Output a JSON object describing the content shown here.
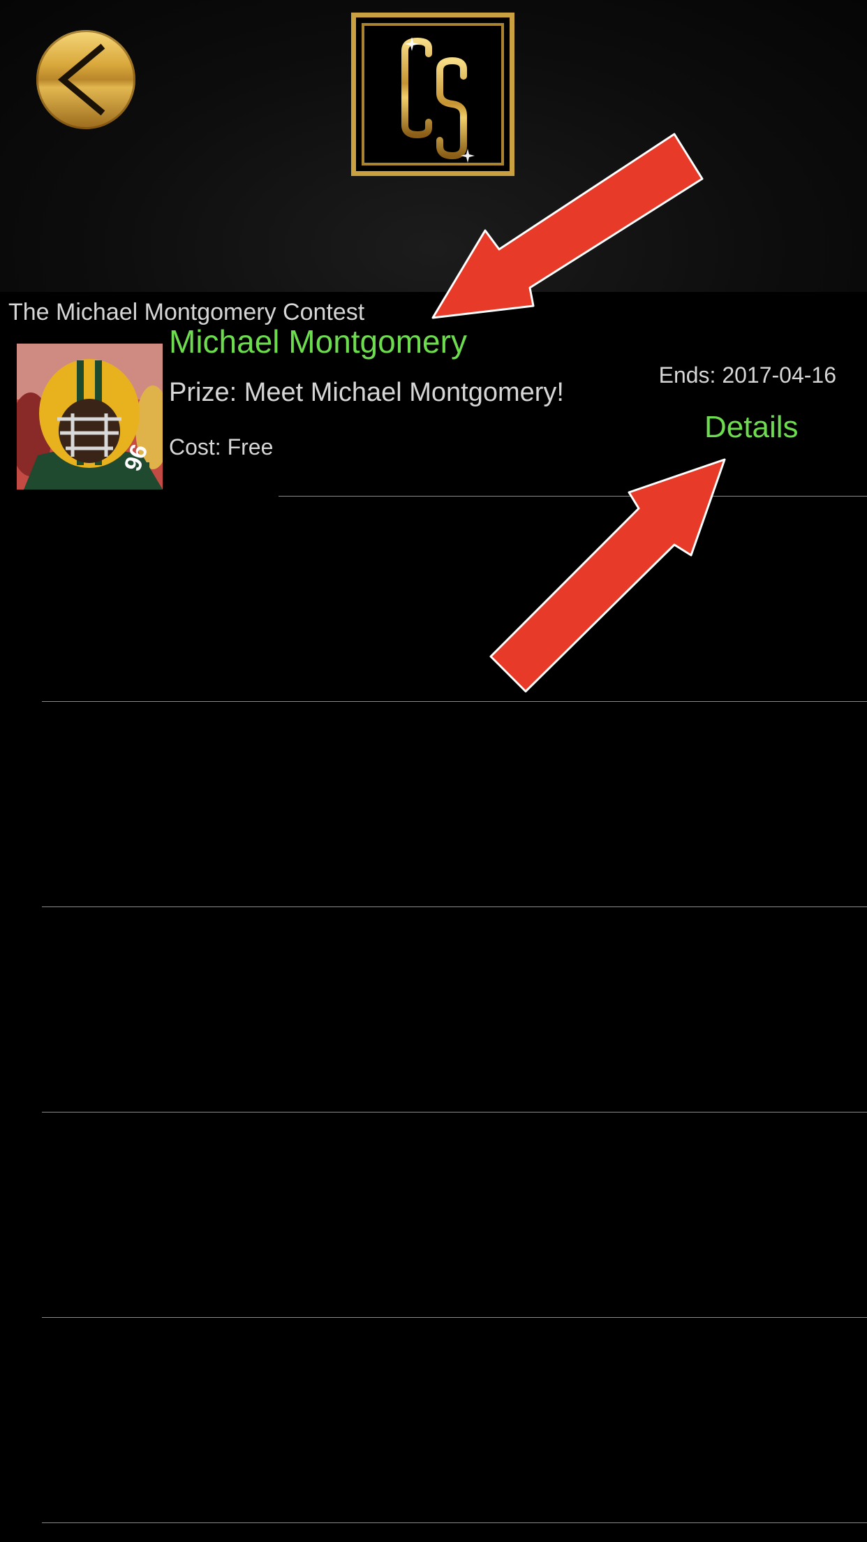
{
  "header": {
    "back_icon": "chevron-left-icon",
    "logo_text": "CS",
    "accent_gold": "#c9a140"
  },
  "contest": {
    "title": "The Michael Montgomery Contest",
    "player_name": "Michael Montgomery",
    "prize": "Prize: Meet Michael Montgomery!",
    "cost": "Cost: Free",
    "ends": "Ends: 2017-04-16",
    "details_label": "Details",
    "jersey_number": "96"
  },
  "colors": {
    "highlight_green": "#6ddc4e",
    "text_gray": "#d6d6d6",
    "arrow_red": "#e83a28",
    "background": "#000000"
  },
  "empty_rows": 4
}
